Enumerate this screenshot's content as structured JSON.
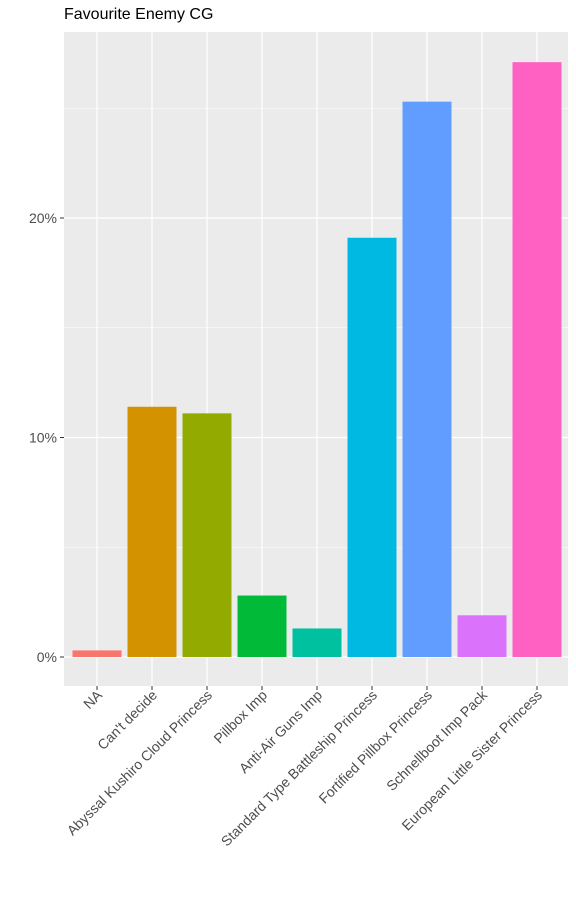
{
  "chart_data": {
    "type": "bar",
    "title": "Favourite Enemy CG",
    "xlabel": "",
    "ylabel": "",
    "categories": [
      "NA",
      "Can't decide",
      "Abyssal Kushiro Cloud Princess",
      "Pillbox Imp",
      "Anti-Air Guns Imp",
      "Standard Type Battleship Princess",
      "Fortified Pillbox Princess",
      "Schnellboot Imp Pack",
      "European Little Sister Princess"
    ],
    "values": [
      0.3,
      11.4,
      11.1,
      2.8,
      1.3,
      19.1,
      25.3,
      1.9,
      27.1
    ],
    "colors": [
      "#F8766D",
      "#D39200",
      "#93AA00",
      "#00BA38",
      "#00C19F",
      "#00B9E3",
      "#619CFF",
      "#DB72FB",
      "#FF61C3"
    ],
    "ylim": [
      0,
      28.5
    ],
    "yticks": [
      0,
      10,
      20
    ],
    "ytick_labels": [
      "0%",
      "10%",
      "20%"
    ],
    "grid": true,
    "legend": "none",
    "panel_background": "#EBEBEB",
    "grid_color": "#FFFFFF"
  }
}
